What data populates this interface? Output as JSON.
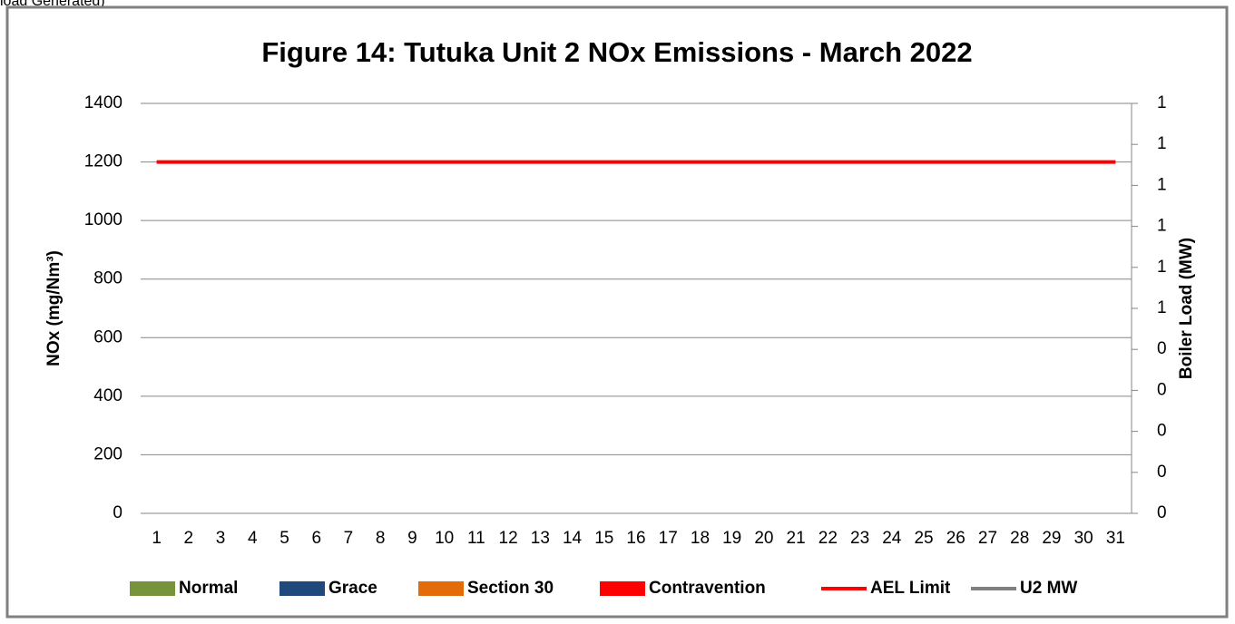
{
  "caption": "load Generated)",
  "chart_data": {
    "type": "bar",
    "title": "Figure 14: Tutuka Unit 2 NOx Emissions -  March 2022",
    "y_label": "NOx (mg/Nm³)",
    "y2_label": "Boiler Load (MW)",
    "categories": [
      "1",
      "2",
      "3",
      "4",
      "5",
      "6",
      "7",
      "8",
      "9",
      "10",
      "11",
      "12",
      "13",
      "14",
      "15",
      "16",
      "17",
      "18",
      "19",
      "20",
      "21",
      "22",
      "23",
      "24",
      "25",
      "26",
      "27",
      "28",
      "29",
      "30",
      "31"
    ],
    "series": [
      {
        "name": "Normal",
        "color": "#77933c",
        "type": "bar",
        "values": [
          null,
          null,
          null,
          null,
          null,
          null,
          null,
          null,
          null,
          null,
          null,
          null,
          null,
          null,
          null,
          null,
          null,
          null,
          null,
          null,
          null,
          null,
          null,
          null,
          null,
          null,
          null,
          null,
          null,
          null,
          null
        ]
      },
      {
        "name": "Grace",
        "color": "#1f497d",
        "type": "bar",
        "values": [
          null,
          null,
          null,
          null,
          null,
          null,
          null,
          null,
          null,
          null,
          null,
          null,
          null,
          null,
          null,
          null,
          null,
          null,
          null,
          null,
          null,
          null,
          null,
          null,
          null,
          null,
          null,
          null,
          null,
          null,
          null
        ]
      },
      {
        "name": "Section 30",
        "color": "#e36c09",
        "type": "bar",
        "values": [
          null,
          null,
          null,
          null,
          null,
          null,
          null,
          null,
          null,
          null,
          null,
          null,
          null,
          null,
          null,
          null,
          null,
          null,
          null,
          null,
          null,
          null,
          null,
          null,
          null,
          null,
          null,
          null,
          null,
          null,
          null
        ]
      },
      {
        "name": "Contravention",
        "color": "#ff0000",
        "type": "bar",
        "values": [
          null,
          null,
          null,
          null,
          null,
          null,
          null,
          null,
          null,
          null,
          null,
          null,
          null,
          null,
          null,
          null,
          null,
          null,
          null,
          null,
          null,
          null,
          null,
          null,
          null,
          null,
          null,
          null,
          null,
          null,
          null
        ]
      },
      {
        "name": "AEL Limit",
        "color": "#ff0000",
        "type": "line",
        "values": [
          1200,
          1200,
          1200,
          1200,
          1200,
          1200,
          1200,
          1200,
          1200,
          1200,
          1200,
          1200,
          1200,
          1200,
          1200,
          1200,
          1200,
          1200,
          1200,
          1200,
          1200,
          1200,
          1200,
          1200,
          1200,
          1200,
          1200,
          1200,
          1200,
          1200,
          1200
        ]
      },
      {
        "name": "U2 MW",
        "color": "#808080",
        "type": "line",
        "axis": "y2",
        "values": [
          null,
          null,
          null,
          null,
          null,
          null,
          null,
          null,
          null,
          null,
          null,
          null,
          null,
          null,
          null,
          null,
          null,
          null,
          null,
          null,
          null,
          null,
          null,
          null,
          null,
          null,
          null,
          null,
          null,
          null,
          null
        ]
      }
    ],
    "ylim": [
      0,
      1400
    ],
    "yticks": [
      0,
      200,
      400,
      600,
      800,
      1000,
      1200,
      1400
    ],
    "y2lim": [
      0,
      1
    ],
    "y2ticks": [
      0,
      {
        "value": 0.1,
        "label": "0"
      },
      {
        "value": 0.2,
        "label": "0"
      },
      {
        "value": 0.3,
        "label": "0"
      },
      {
        "value": 0.4,
        "label": "0"
      },
      {
        "value": 0.5,
        "label": "1"
      },
      {
        "value": 0.6,
        "label": "1"
      },
      {
        "value": 0.7,
        "label": "1"
      },
      {
        "value": 0.8,
        "label": "1"
      },
      {
        "value": 0.9,
        "label": "1"
      },
      1
    ],
    "grid": true,
    "legend": "bottom"
  }
}
